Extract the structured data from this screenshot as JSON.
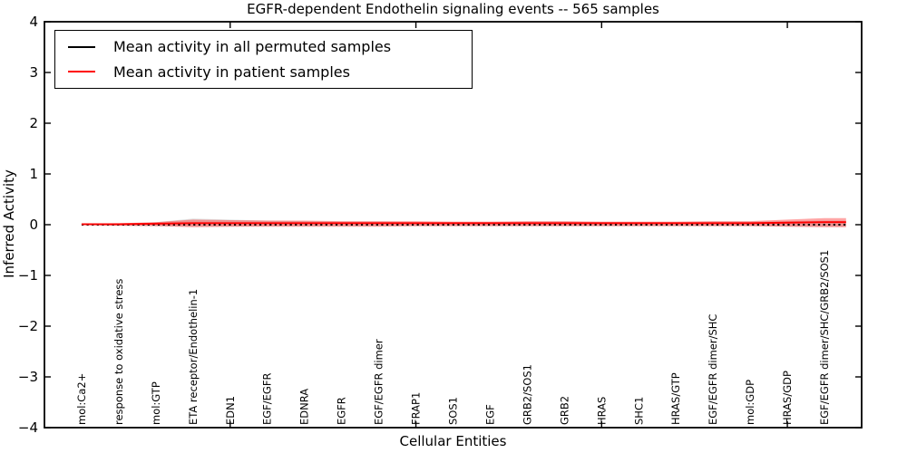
{
  "chart_data": {
    "type": "line",
    "title": "EGFR-dependent Endothelin signaling events -- 565 samples",
    "xlabel": "Cellular Entities",
    "ylabel": "Inferred Activity",
    "ylim": [
      -4,
      4
    ],
    "yticks": [
      -4,
      -3,
      -2,
      -1,
      0,
      1,
      2,
      3,
      4
    ],
    "xtick_values": [
      5,
      10,
      15,
      20
    ],
    "grid": false,
    "legend_position": "upper left",
    "categories": [
      "mol:Ca2+",
      "response to oxidative stress",
      "mol:GTP",
      "ETA receptor/Endothelin-1",
      "EDN1",
      "EGF/EGFR",
      "EDNRA",
      "EGFR",
      "EGF/EGFR dimer",
      "FRAP1",
      "SOS1",
      "EGF",
      "GRB2/SOS1",
      "GRB2",
      "HRAS",
      "SHC1",
      "HRAS/GTP",
      "EGF/EGFR dimer/SHC",
      "mol:GDP",
      "HRAS/GDP",
      "EGF/EGFR dimer/SHC/GRB2/SOS1"
    ],
    "series": [
      {
        "name": "Mean activity in all permuted samples",
        "color": "#000000",
        "style": "dotted",
        "values": [
          0.0,
          0.0,
          0.0,
          0.0,
          0.0,
          0.0,
          0.0,
          0.0,
          0.0,
          0.0,
          0.0,
          0.0,
          0.0,
          0.0,
          0.0,
          0.0,
          0.0,
          0.0,
          0.0,
          0.0,
          0.0
        ]
      },
      {
        "name": "Mean activity in patient samples",
        "color": "#ff0000",
        "style": "solid",
        "values": [
          0.01,
          0.01,
          0.02,
          0.03,
          0.03,
          0.03,
          0.03,
          0.03,
          0.03,
          0.03,
          0.03,
          0.03,
          0.03,
          0.03,
          0.03,
          0.03,
          0.03,
          0.03,
          0.03,
          0.04,
          0.05
        ]
      }
    ],
    "bands": [
      {
        "name": "patient std band",
        "color": "#ff0000",
        "opacity": 0.35,
        "upper": [
          0.02,
          0.03,
          0.05,
          0.1,
          0.09,
          0.08,
          0.08,
          0.07,
          0.07,
          0.07,
          0.06,
          0.06,
          0.07,
          0.07,
          0.06,
          0.06,
          0.06,
          0.07,
          0.07,
          0.1,
          0.13
        ],
        "lower": [
          -0.01,
          -0.02,
          -0.03,
          -0.05,
          -0.04,
          -0.04,
          -0.04,
          -0.04,
          -0.04,
          -0.03,
          -0.03,
          -0.03,
          -0.03,
          -0.03,
          -0.03,
          -0.03,
          -0.03,
          -0.03,
          -0.03,
          -0.04,
          -0.05
        ]
      },
      {
        "name": "permuted std band",
        "color": "#000000",
        "opacity": 0.12,
        "upper": [
          0.01,
          0.02,
          0.05,
          0.12,
          0.1,
          0.08,
          0.07,
          0.06,
          0.06,
          0.05,
          0.05,
          0.05,
          0.06,
          0.06,
          0.05,
          0.05,
          0.05,
          0.06,
          0.06,
          0.07,
          0.08
        ],
        "lower": [
          -0.01,
          -0.02,
          -0.03,
          -0.04,
          -0.04,
          -0.03,
          -0.03,
          -0.03,
          -0.03,
          -0.03,
          -0.03,
          -0.03,
          -0.03,
          -0.03,
          -0.03,
          -0.03,
          -0.03,
          -0.03,
          -0.03,
          -0.04,
          -0.04
        ]
      }
    ]
  }
}
